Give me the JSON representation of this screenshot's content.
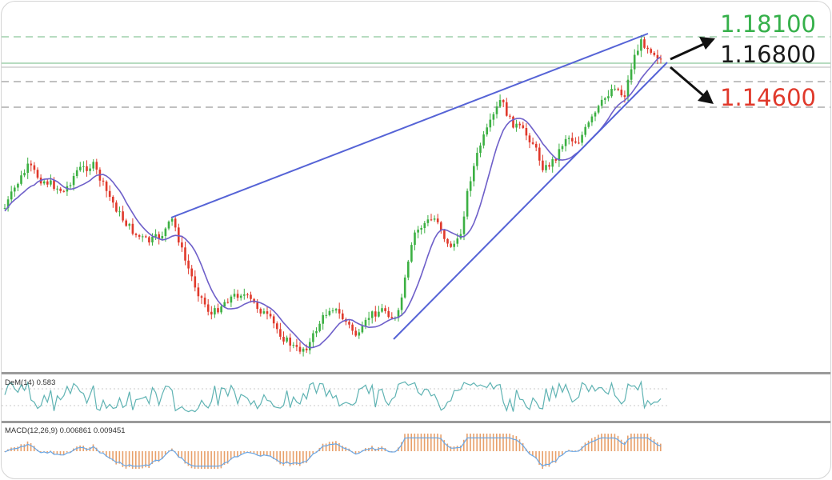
{
  "colors": {
    "bull": "#3cb043",
    "bear": "#e0392b",
    "ma": "#6e5fc9",
    "trend": "#5563d6",
    "grid_green": "#8cc79a",
    "grid_gray": "#9a9a9a",
    "dem": "#5fb3b3",
    "macd_hist": "#e8a06a",
    "macd_signal": "#6aa7e6",
    "label_green": "#35b04a",
    "label_black": "#1a1a1a",
    "label_red": "#e0392b"
  },
  "levels": {
    "resistance": "1.18100",
    "current": "1.16800",
    "support": "1.14600"
  },
  "indicators": {
    "dem_label": "DeM(14) 0.583",
    "macd_label": "MACD(12,26,9) 0.006861 0.009451"
  },
  "chart_data": {
    "type": "candlestick",
    "title": "",
    "levels": [
      1.181,
      1.168,
      1.146
    ],
    "level_names": [
      "1.18100",
      "1.16800",
      "1.14600"
    ],
    "price_range": [
      1.125,
      1.183
    ],
    "notes": "Rising wedge pattern with projected breakout arrows up toward 1.18100 and down toward 1.14600"
  }
}
